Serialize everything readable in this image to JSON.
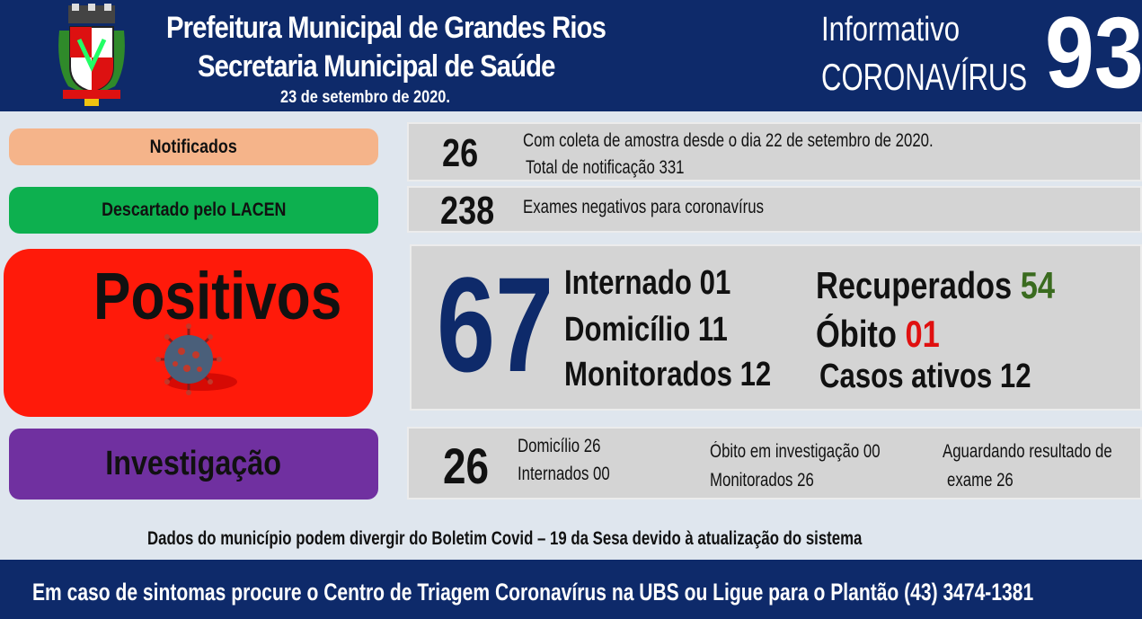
{
  "header": {
    "title_line1": "Prefeitura Municipal de Grandes Rios",
    "title_line2": "Secretaria Municipal de Saúde",
    "date": "23 de setembro  de 2020.",
    "info_line1": "Informativo",
    "info_line2": "CORONAVÍRUS",
    "edition_number": "93",
    "crest_icon": "municipal-coat-of-arms-icon"
  },
  "labels": {
    "notificados": "Notificados",
    "descartado": "Descartado  pelo LACEN",
    "positivos": "Positivos",
    "investigacao": "Investigação",
    "virus_icon": "coronavirus-icon"
  },
  "notificados": {
    "count": "26",
    "line1": "Com coleta de amostra desde o dia 22 de setembro de 2020.",
    "line2": "Total de notificação  331"
  },
  "descartado": {
    "count": "238",
    "text": "Exames negativos  para coronavírus"
  },
  "positivos": {
    "count": "67",
    "internado": "Internado 01",
    "domicilio": "Domicílio 11",
    "monitorados": "Monitorados 12",
    "recuperados_label": "Recuperados",
    "recuperados_value": "54",
    "obito_label": "Óbito",
    "obito_value": "01",
    "casos_ativos": "Casos ativos 12"
  },
  "investigacao": {
    "count": "26",
    "domicilio": "Domicílio 26",
    "internados": "Internados 00",
    "obito": "Óbito  em investigação  00",
    "monitorados": "Monitorados  26",
    "aguardando1": "Aguardando resultado de",
    "aguardando2": "exame 26"
  },
  "footnote": "Dados do município podem  divergir do Boletim  Covid – 19 da Sesa devido à atualização  do sistema",
  "footer": "Em caso de sintomas  procure  o Centro de Triagem  Coronavírus  na UBS ou Ligue para o Plantão  (43) 3474-1381",
  "colors": {
    "navy": "#0e2a6a",
    "notificados": "#f5b48a",
    "descartado": "#0db04f",
    "positivos": "#ff1a0a",
    "investigacao": "#7030a0",
    "recuperados": "#3a6b1f",
    "obito": "#e01010"
  }
}
